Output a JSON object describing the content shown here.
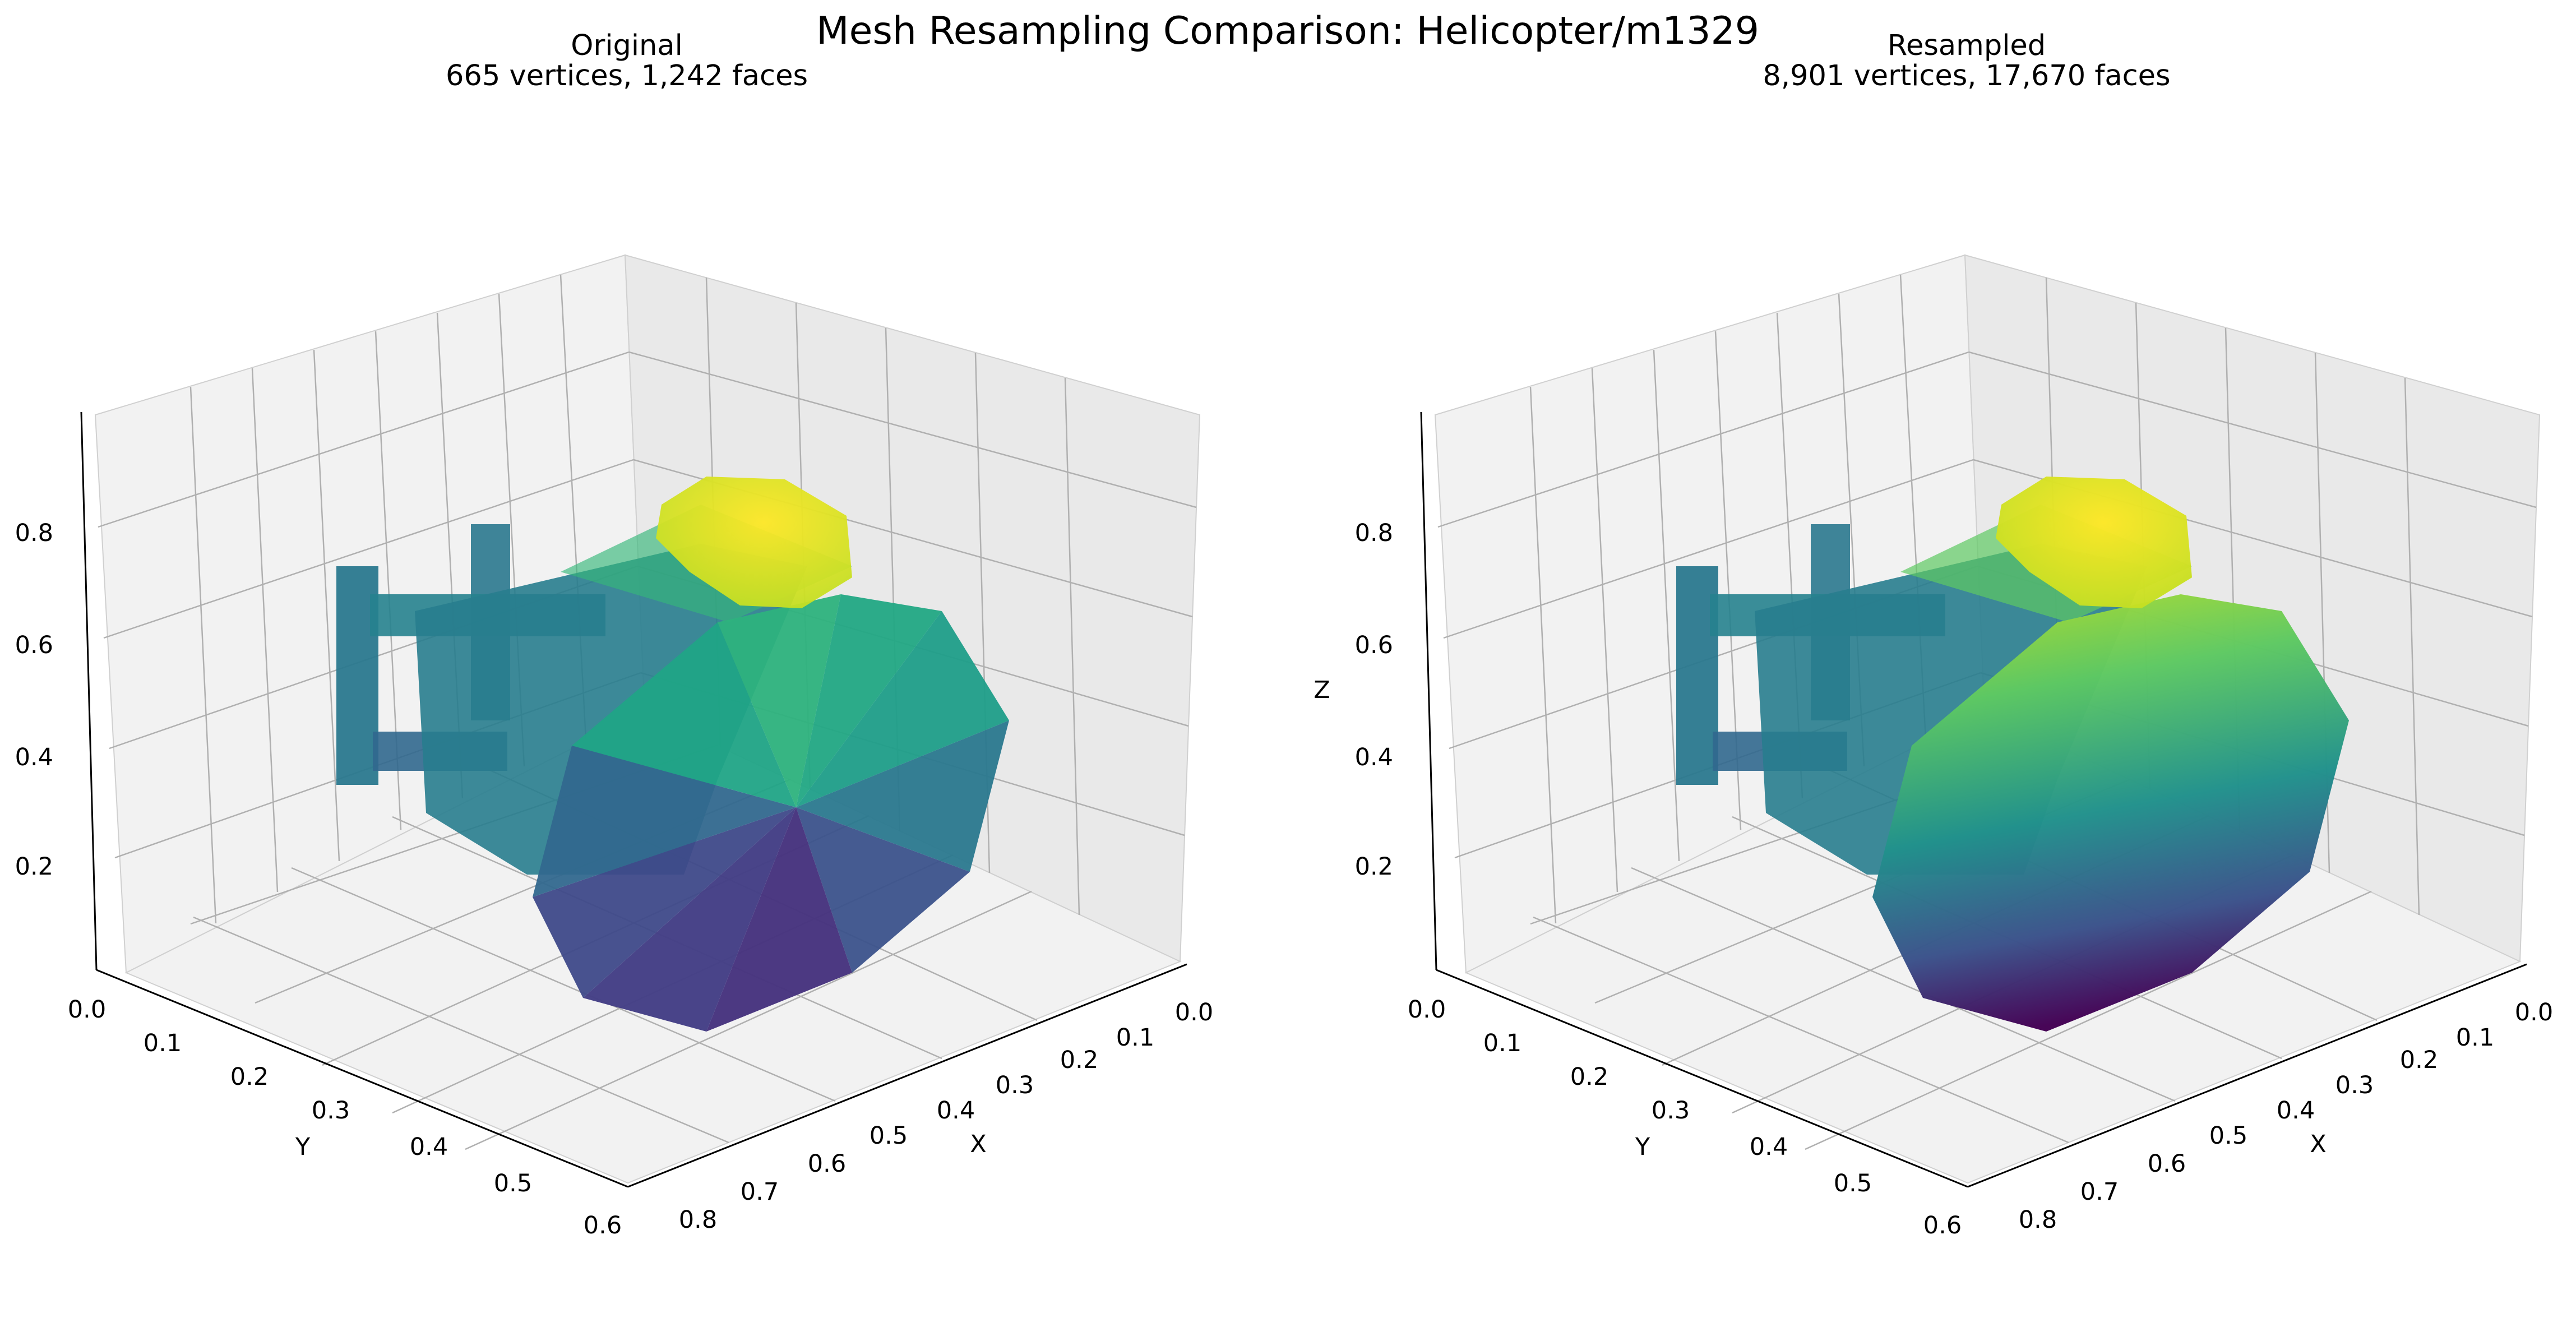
{
  "figure": {
    "title": "Mesh Resampling Comparison: Helicopter/m1329"
  },
  "colors": {
    "pane": "#f2f2f2",
    "pane_dark": "#e9e9e9",
    "grid": "#b0b0b0",
    "axis": "#000000",
    "colormap": "viridis"
  },
  "chart_data": [
    {
      "type": "3d-mesh",
      "title": "Original",
      "subtitle": "665 vertices, 1,242 faces",
      "vertices": 665,
      "faces": 1242,
      "shading": "flat",
      "xlabel": "X",
      "ylabel": "Y",
      "zlabel": "",
      "xticks": [
        "0.0",
        "0.1",
        "0.2",
        "0.3",
        "0.4",
        "0.5",
        "0.6",
        "0.7",
        "0.8"
      ],
      "yticks": [
        "0.0",
        "0.1",
        "0.2",
        "0.3",
        "0.4",
        "0.5",
        "0.6"
      ],
      "zticks": [
        "0.2",
        "0.4",
        "0.6",
        "0.8"
      ],
      "xlim": [
        0,
        0.85
      ],
      "ylim": [
        0,
        0.6
      ],
      "zlim": [
        0,
        1.0
      ],
      "grid": true
    },
    {
      "type": "3d-mesh",
      "title": "Resampled",
      "subtitle": "8,901 vertices, 17,670 faces",
      "vertices": 8901,
      "faces": 17670,
      "shading": "smooth",
      "xlabel": "X",
      "ylabel": "Y",
      "zlabel": "Z",
      "xticks": [
        "0.0",
        "0.1",
        "0.2",
        "0.3",
        "0.4",
        "0.5",
        "0.6",
        "0.7",
        "0.8"
      ],
      "yticks": [
        "0.0",
        "0.1",
        "0.2",
        "0.3",
        "0.4",
        "0.5",
        "0.6"
      ],
      "zticks": [
        "0.2",
        "0.4",
        "0.6",
        "0.8"
      ],
      "xlim": [
        0,
        0.85
      ],
      "ylim": [
        0,
        0.6
      ],
      "zlim": [
        0,
        1.0
      ],
      "grid": true
    }
  ]
}
